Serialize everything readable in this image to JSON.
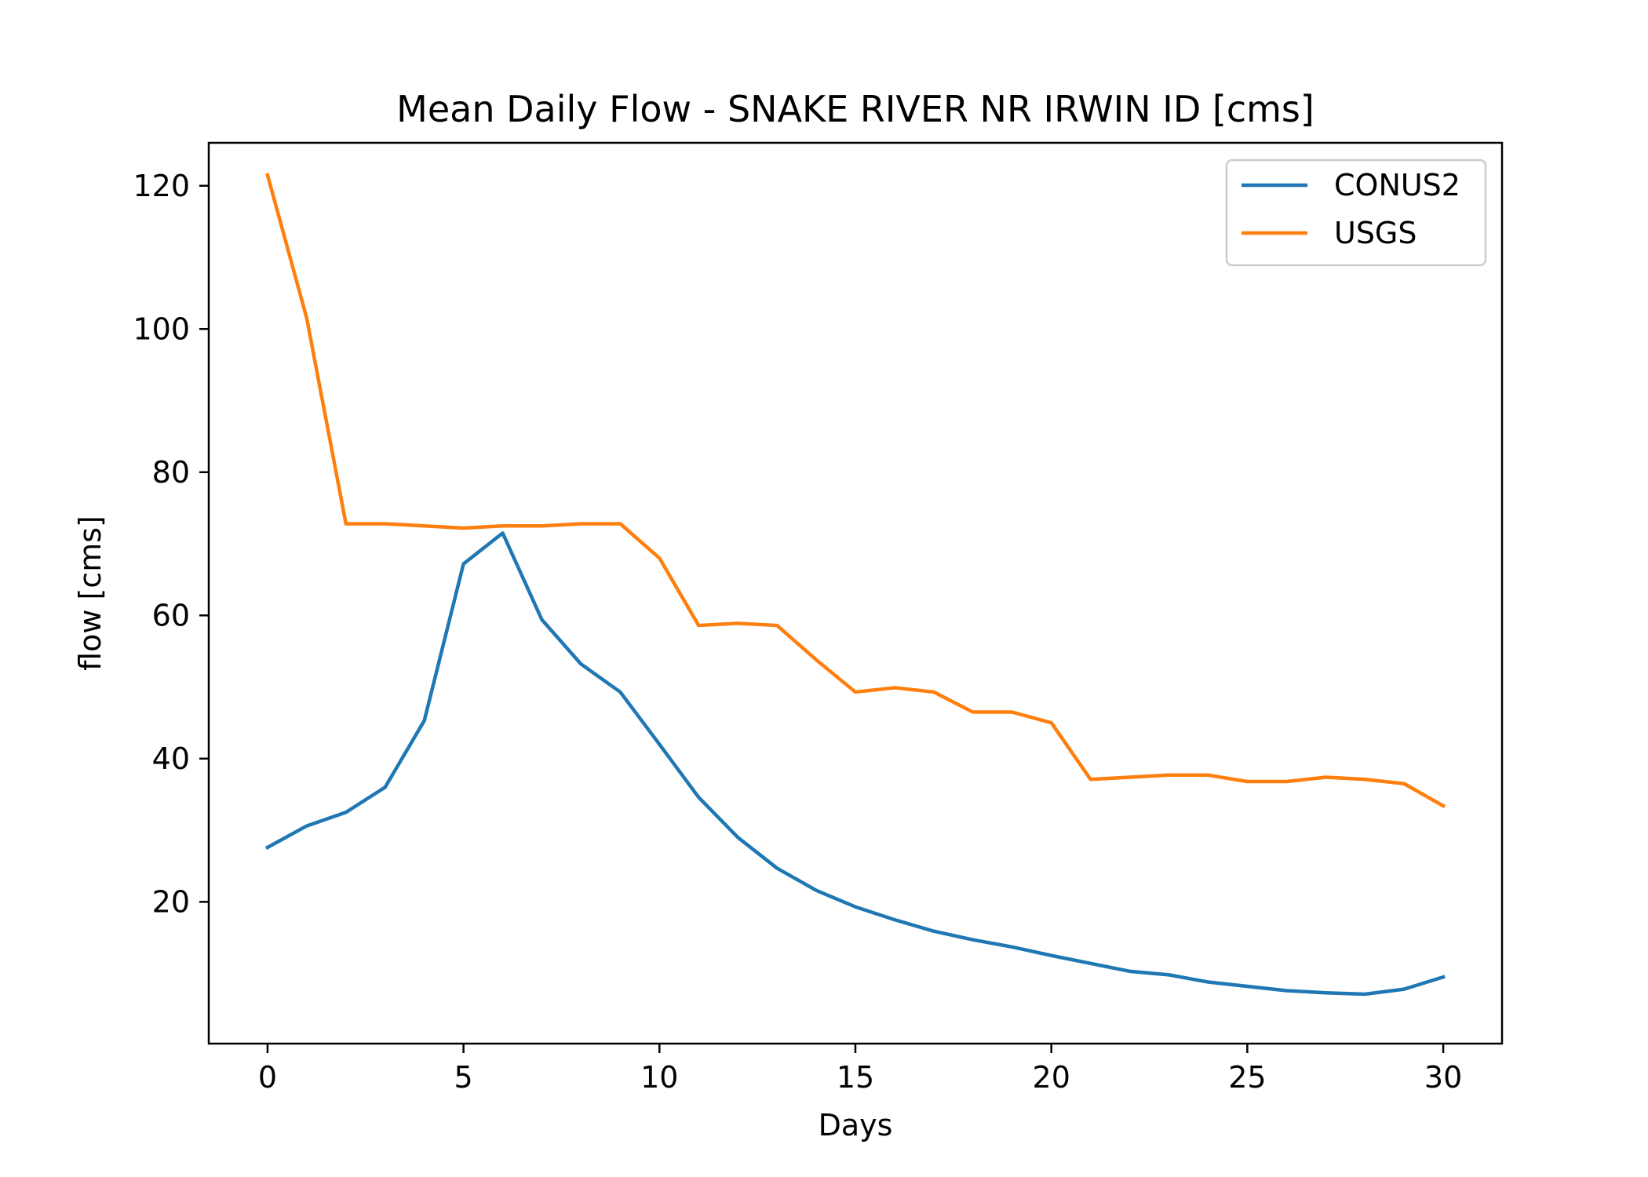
{
  "chart_data": {
    "type": "line",
    "title": "Mean Daily Flow - SNAKE RIVER NR IRWIN ID [cms]",
    "xlabel": "Days",
    "ylabel": "flow [cms]",
    "xlim": [
      -1.5,
      31.5
    ],
    "ylim": [
      0.2,
      126.0
    ],
    "xticks": [
      0,
      5,
      10,
      15,
      20,
      25,
      30
    ],
    "yticks": [
      20,
      40,
      60,
      80,
      100,
      120
    ],
    "grid": false,
    "legend_position": "top-right",
    "x": [
      0,
      1,
      2,
      3,
      4,
      5,
      6,
      7,
      8,
      9,
      10,
      11,
      12,
      13,
      14,
      15,
      16,
      17,
      18,
      19,
      20,
      21,
      22,
      23,
      24,
      25,
      26,
      27,
      28,
      29,
      30
    ],
    "series": [
      {
        "name": "CONUS2",
        "color": "#1f77b4",
        "values": [
          27.6,
          30.6,
          32.5,
          36.0,
          45.3,
          67.2,
          71.5,
          59.4,
          53.2,
          49.3,
          42.0,
          34.6,
          29.0,
          24.7,
          21.6,
          19.3,
          17.5,
          15.9,
          14.7,
          13.7,
          12.5,
          11.4,
          10.3,
          9.8,
          8.8,
          8.2,
          7.6,
          7.3,
          7.1,
          7.8,
          9.5
        ]
      },
      {
        "name": "USGS",
        "color": "#ff7f0e",
        "values": [
          121.5,
          101.5,
          72.8,
          72.8,
          72.5,
          72.2,
          72.5,
          72.5,
          72.8,
          72.8,
          68.0,
          58.6,
          58.9,
          58.6,
          53.8,
          49.3,
          49.9,
          49.3,
          46.5,
          46.5,
          45.0,
          37.1,
          37.4,
          37.7,
          37.7,
          36.8,
          36.8,
          37.4,
          37.1,
          36.5,
          33.4
        ]
      }
    ]
  }
}
